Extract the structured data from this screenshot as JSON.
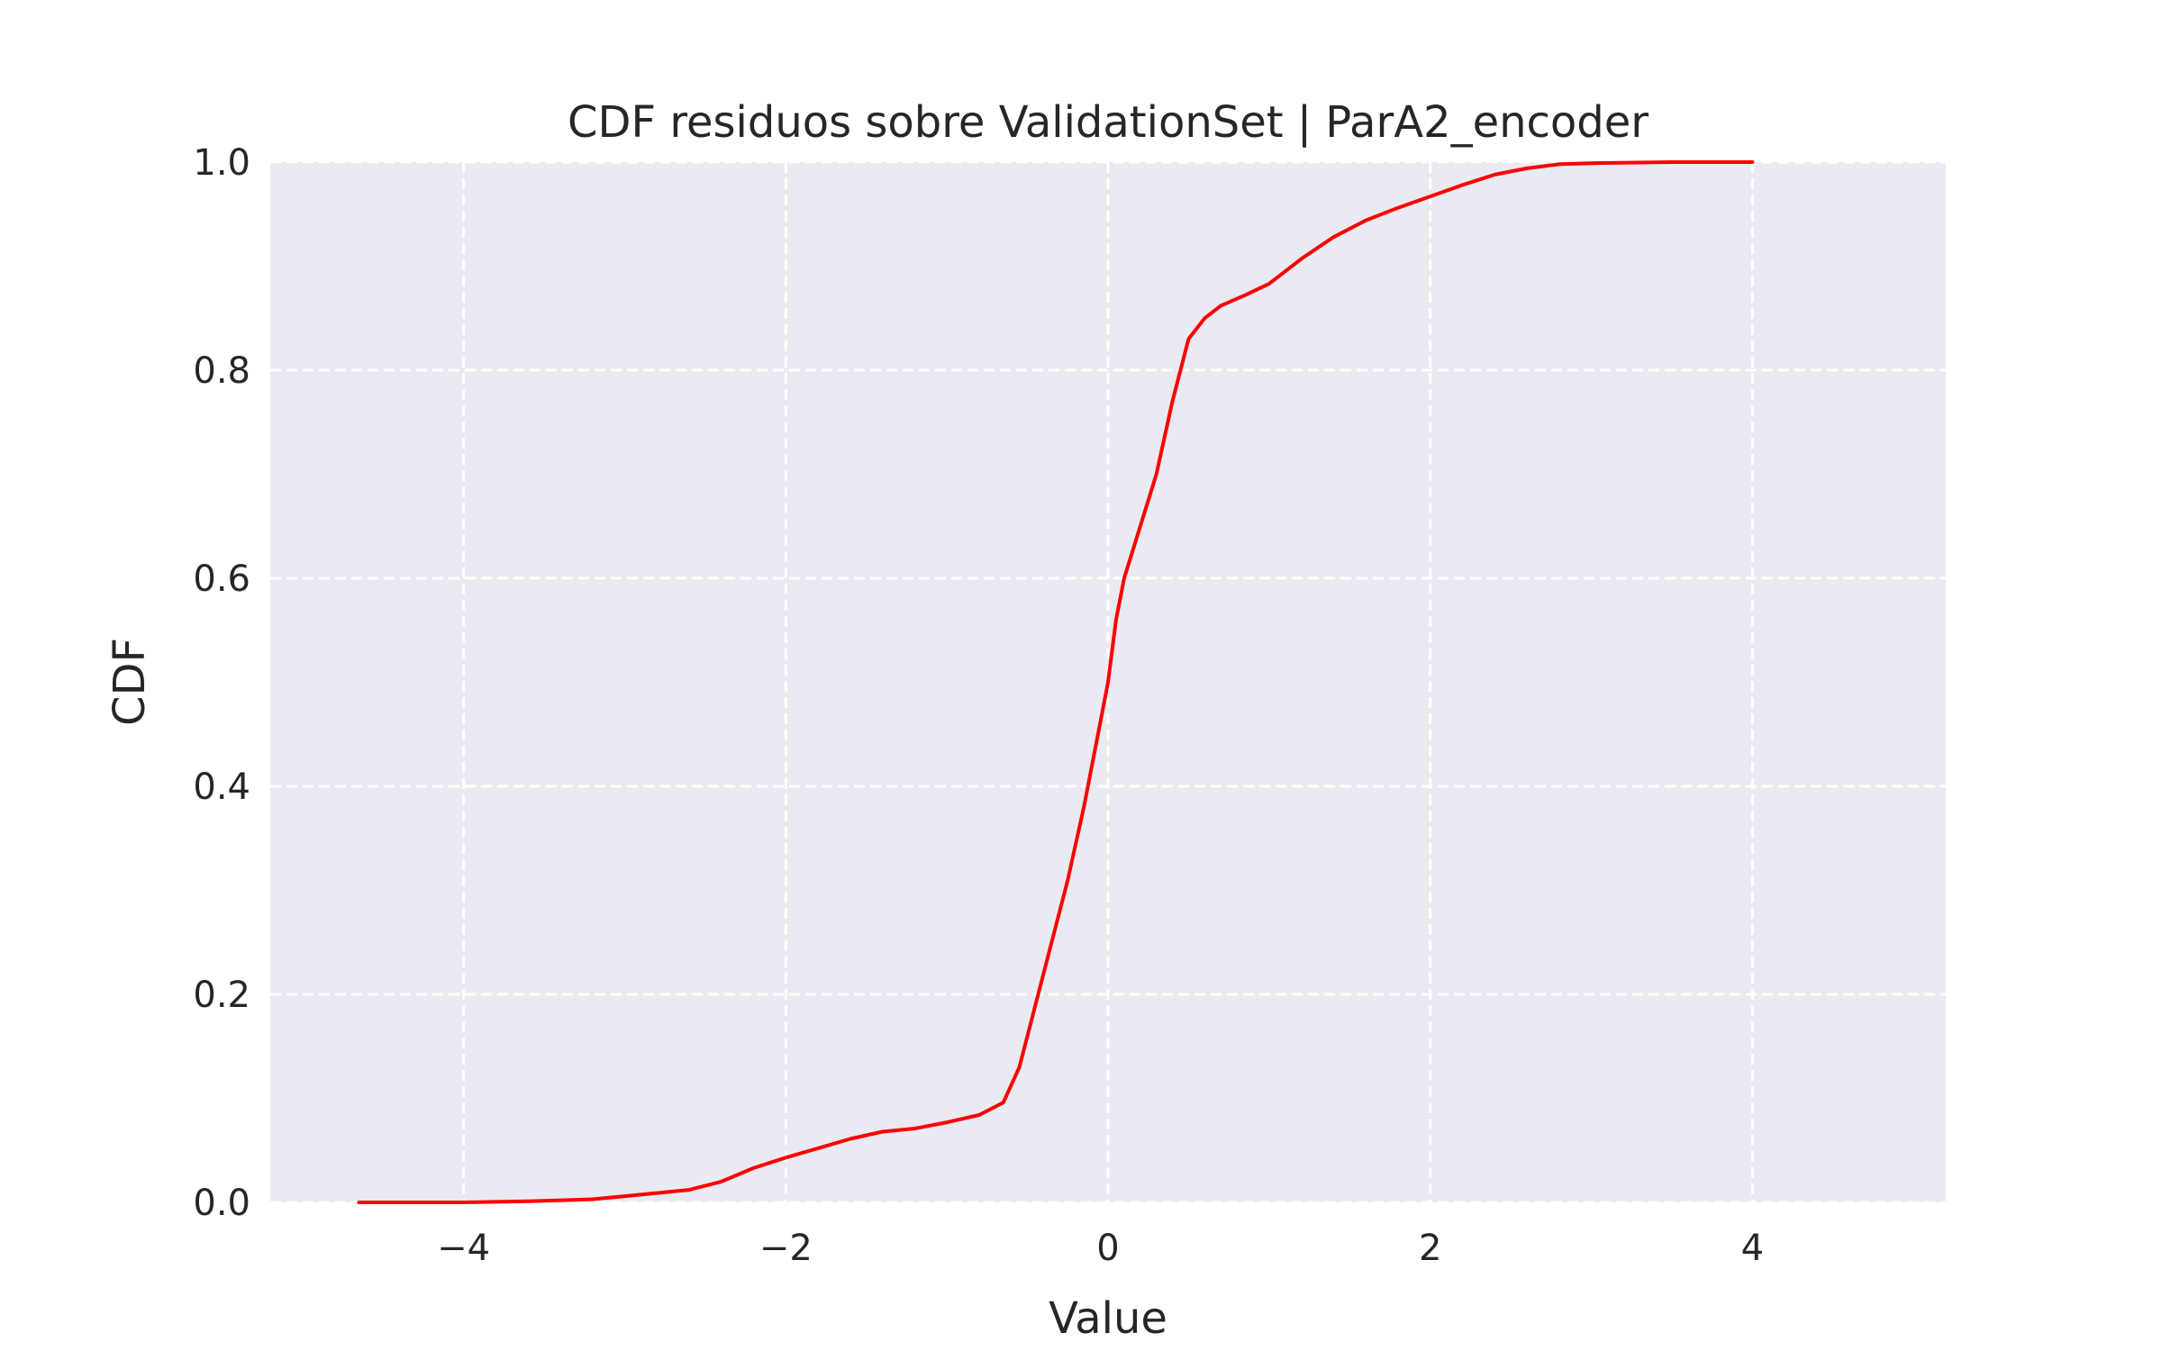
{
  "chart_data": {
    "type": "line",
    "title": "CDF residuos sobre ValidationSet | ParA2_encoder",
    "xlabel": "Value",
    "ylabel": "CDF",
    "xlim": [
      -5.2,
      5.2
    ],
    "ylim": [
      0.0,
      1.0
    ],
    "xticks": [
      -4,
      -2,
      0,
      2,
      4
    ],
    "xtick_labels": [
      "−4",
      "−2",
      "0",
      "2",
      "4"
    ],
    "yticks": [
      0.0,
      0.2,
      0.4,
      0.6,
      0.8,
      1.0
    ],
    "ytick_labels": [
      "0.0",
      "0.2",
      "0.4",
      "0.6",
      "0.8",
      "1.0"
    ],
    "grid": true,
    "colors": {
      "line": "#ff0000",
      "background": "#eaeaf2",
      "grid": "#ffffff"
    },
    "series": [
      {
        "x": [
          -4.65,
          -4.0,
          -3.6,
          -3.2,
          -3.0,
          -2.8,
          -2.6,
          -2.4,
          -2.2,
          -2.0,
          -1.8,
          -1.6,
          -1.4,
          -1.2,
          -1.0,
          -0.8,
          -0.65,
          -0.55,
          -0.45,
          -0.35,
          -0.25,
          -0.15,
          -0.05,
          0.0,
          0.05,
          0.1,
          0.2,
          0.3,
          0.4,
          0.5,
          0.6,
          0.7,
          0.85,
          1.0,
          1.2,
          1.4,
          1.6,
          1.8,
          2.0,
          2.2,
          2.4,
          2.6,
          2.8,
          3.0,
          3.5,
          4.0
        ],
        "y": [
          0.0,
          0.0,
          0.001,
          0.003,
          0.006,
          0.009,
          0.012,
          0.02,
          0.033,
          0.043,
          0.052,
          0.061,
          0.068,
          0.071,
          0.077,
          0.084,
          0.096,
          0.13,
          0.19,
          0.25,
          0.31,
          0.38,
          0.46,
          0.5,
          0.56,
          0.6,
          0.65,
          0.7,
          0.77,
          0.83,
          0.85,
          0.862,
          0.872,
          0.883,
          0.907,
          0.928,
          0.944,
          0.956,
          0.967,
          0.978,
          0.988,
          0.994,
          0.998,
          0.999,
          1.0,
          1.0
        ]
      }
    ]
  }
}
